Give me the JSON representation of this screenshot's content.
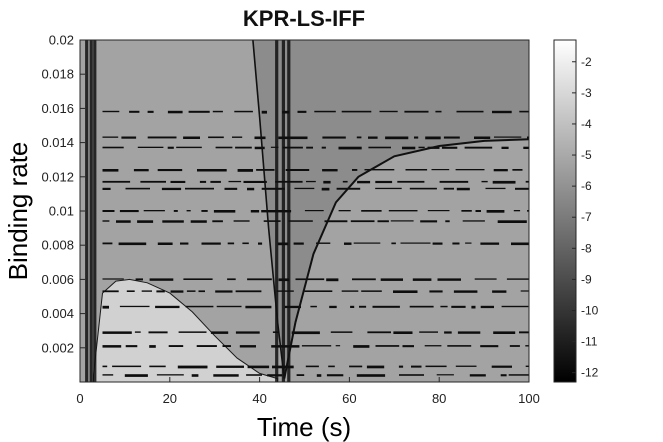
{
  "chart_data": {
    "type": "heatmap",
    "title": "KPR-LS-IFF",
    "xlabel": "Time (s)",
    "ylabel": "Binding rate",
    "xlim": [
      0,
      100
    ],
    "ylim": [
      0,
      0.02
    ],
    "xticks": [
      0,
      20,
      40,
      60,
      80,
      100
    ],
    "xtick_labels": [
      "0",
      "20",
      "40",
      "60",
      "80",
      "100"
    ],
    "yticks": [
      0.002,
      0.004,
      0.006,
      0.008,
      0.01,
      0.012,
      0.014,
      0.016,
      0.018,
      0.02
    ],
    "ytick_labels": [
      "0.002",
      "0.004",
      "0.006",
      "0.008",
      "0.01",
      "0.012",
      "0.014",
      "0.016",
      "0.018",
      "0.02"
    ],
    "colormap": "gray",
    "colorbar": {
      "ticks": [
        -2,
        -3,
        -4,
        -5,
        -6,
        -7,
        -8,
        -9,
        -10,
        -11,
        -12
      ],
      "tick_labels": [
        "-2",
        "-3",
        "-4",
        "-5",
        "-6",
        "-7",
        "-8",
        "-9",
        "-10",
        "-11",
        "-12"
      ],
      "range": [
        -12.3,
        -1.3
      ]
    },
    "regions": [
      {
        "label": "background",
        "value": -5.8
      },
      {
        "label": "upper-right",
        "value": -6.7
      },
      {
        "label": "lower-left bump",
        "value": -3.5
      }
    ],
    "bump_boundary": {
      "x": [
        3,
        5,
        8,
        11,
        15,
        20,
        25,
        30,
        35,
        40,
        44
      ],
      "y": [
        0.0004,
        0.0052,
        0.0059,
        0.006,
        0.0058,
        0.0052,
        0.0041,
        0.0027,
        0.0014,
        0.0005,
        0.0002
      ]
    },
    "left_wedge_boundary": {
      "x": [
        38.5,
        40,
        42,
        44,
        45.5
      ],
      "y": [
        0.02,
        0.0155,
        0.009,
        0.0035,
        0.0002
      ]
    },
    "right_wedge_boundary": {
      "x": [
        45.5,
        48,
        52,
        57,
        62,
        70,
        80,
        90,
        100
      ],
      "y": [
        0.0002,
        0.0035,
        0.0075,
        0.0105,
        0.012,
        0.0132,
        0.0138,
        0.0141,
        0.0142
      ]
    },
    "horizontal_streaks_y": [
      0.0158,
      0.0143,
      0.0137,
      0.0124,
      0.0117,
      0.0113,
      0.01,
      0.0094,
      0.0081,
      0.006,
      0.0053,
      0.0044,
      0.0029,
      0.0021,
      0.0009,
      0.0004
    ],
    "vertical_dark_bands_x": [
      1.5,
      2.5,
      3.3,
      43.8,
      45.3,
      46.5
    ]
  }
}
